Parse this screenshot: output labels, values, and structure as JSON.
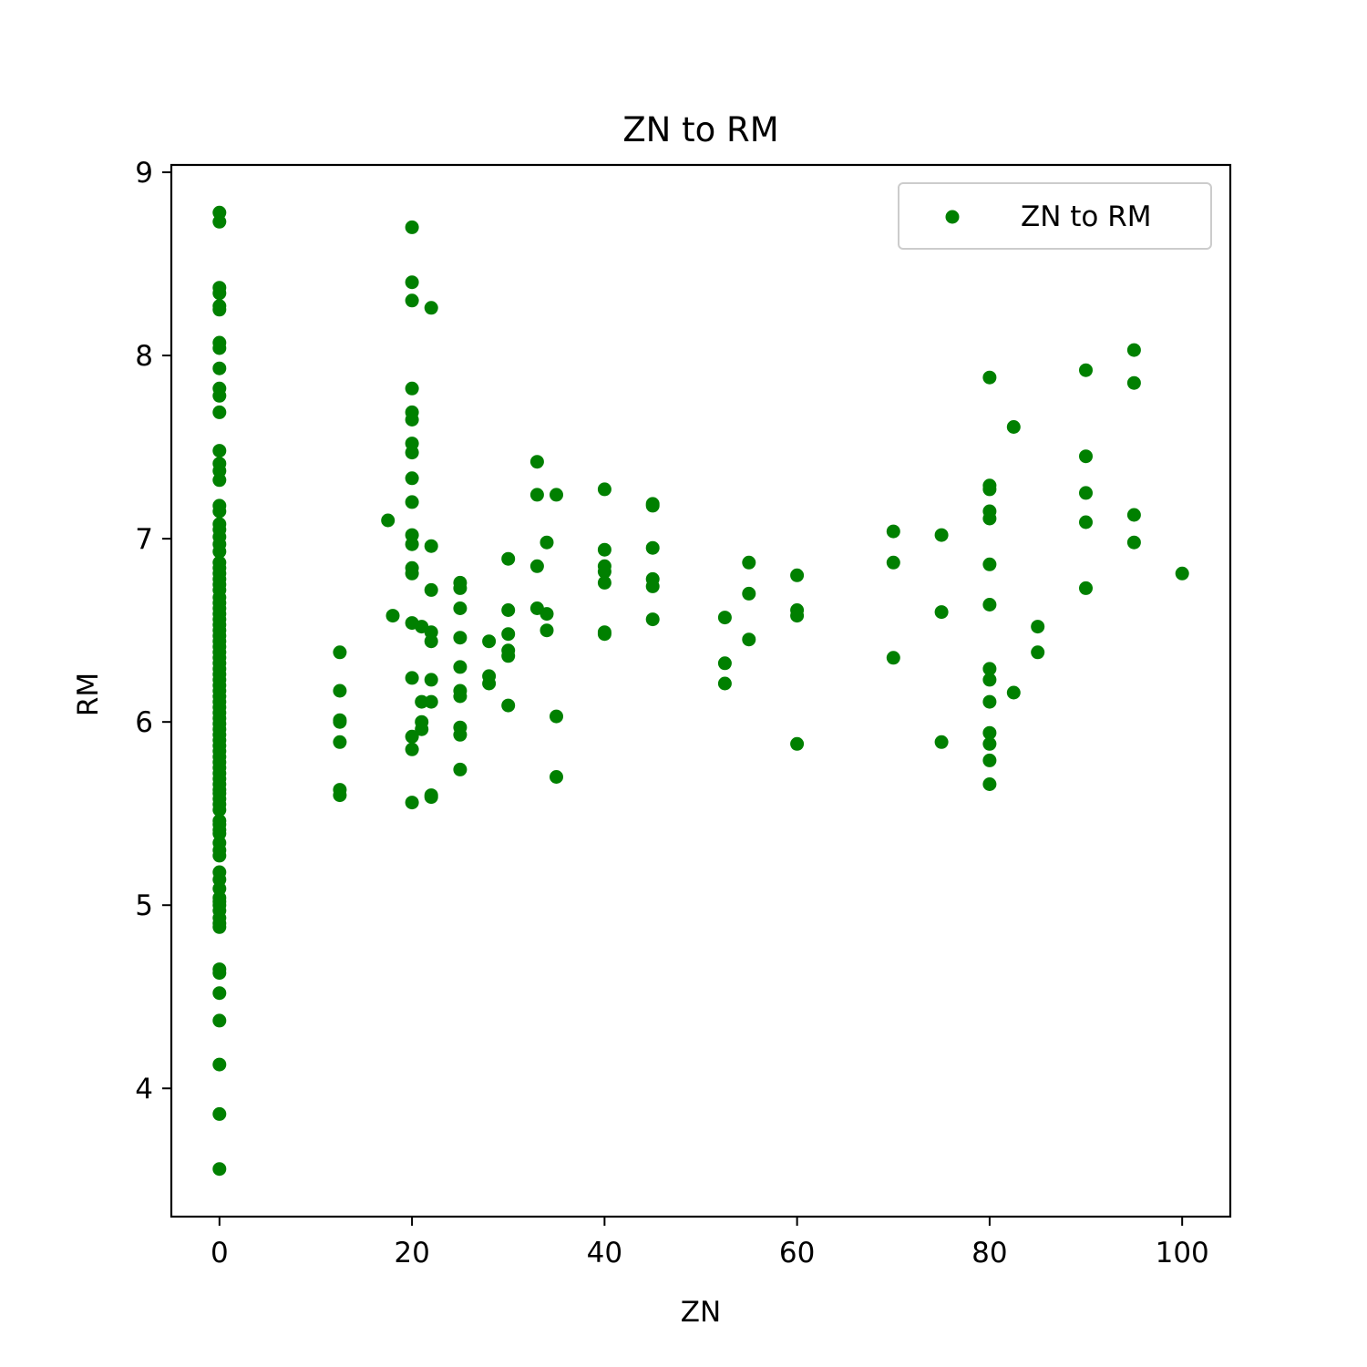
{
  "colors": {
    "marker": "#008000",
    "axes": "#000000",
    "background": "#ffffff",
    "legend_border": "#cccccc"
  },
  "chart_data": {
    "type": "scatter",
    "title": "ZN to RM",
    "xlabel": "ZN",
    "ylabel": "RM",
    "xlim": [
      -5,
      105
    ],
    "ylim": [
      3.3,
      9.04
    ],
    "xticks": [
      0,
      20,
      40,
      60,
      80,
      100
    ],
    "yticks": [
      4,
      5,
      6,
      7,
      8,
      9
    ],
    "grid": false,
    "legend_position": "top-right",
    "series": [
      {
        "name": "ZN to RM",
        "color": "#008000",
        "points": [
          [
            0,
            3.56
          ],
          [
            0,
            3.86
          ],
          [
            0,
            4.13
          ],
          [
            0,
            4.37
          ],
          [
            0,
            4.52
          ],
          [
            0,
            4.63
          ],
          [
            0,
            4.65
          ],
          [
            0,
            4.88
          ],
          [
            0,
            4.9
          ],
          [
            0,
            4.93
          ],
          [
            0,
            4.97
          ],
          [
            0,
            5.0
          ],
          [
            0,
            5.02
          ],
          [
            0,
            5.04
          ],
          [
            0,
            5.09
          ],
          [
            0,
            5.14
          ],
          [
            0,
            5.18
          ],
          [
            0,
            5.27
          ],
          [
            0,
            5.3
          ],
          [
            0,
            5.34
          ],
          [
            0,
            5.39
          ],
          [
            0,
            5.41
          ],
          [
            0,
            5.44
          ],
          [
            0,
            5.46
          ],
          [
            0,
            5.52
          ],
          [
            0,
            5.55
          ],
          [
            0,
            5.58
          ],
          [
            0,
            5.61
          ],
          [
            0,
            5.63
          ],
          [
            0,
            5.66
          ],
          [
            0,
            5.69
          ],
          [
            0,
            5.72
          ],
          [
            0,
            5.75
          ],
          [
            0,
            5.78
          ],
          [
            0,
            5.81
          ],
          [
            0,
            5.84
          ],
          [
            0,
            5.87
          ],
          [
            0,
            5.9
          ],
          [
            0,
            5.93
          ],
          [
            0,
            5.96
          ],
          [
            0,
            5.99
          ],
          [
            0,
            6.02
          ],
          [
            0,
            6.05
          ],
          [
            0,
            6.08
          ],
          [
            0,
            6.11
          ],
          [
            0,
            6.14
          ],
          [
            0,
            6.17
          ],
          [
            0,
            6.2
          ],
          [
            0,
            6.23
          ],
          [
            0,
            6.26
          ],
          [
            0,
            6.29
          ],
          [
            0,
            6.32
          ],
          [
            0,
            6.35
          ],
          [
            0,
            6.38
          ],
          [
            0,
            6.41
          ],
          [
            0,
            6.44
          ],
          [
            0,
            6.47
          ],
          [
            0,
            6.5
          ],
          [
            0,
            6.53
          ],
          [
            0,
            6.56
          ],
          [
            0,
            6.59
          ],
          [
            0,
            6.62
          ],
          [
            0,
            6.65
          ],
          [
            0,
            6.68
          ],
          [
            0,
            6.72
          ],
          [
            0,
            6.75
          ],
          [
            0,
            6.78
          ],
          [
            0,
            6.81
          ],
          [
            0,
            6.84
          ],
          [
            0,
            6.87
          ],
          [
            0,
            6.93
          ],
          [
            0,
            6.97
          ],
          [
            0,
            7.01
          ],
          [
            0,
            7.05
          ],
          [
            0,
            7.08
          ],
          [
            0,
            7.15
          ],
          [
            0,
            7.18
          ],
          [
            0,
            7.32
          ],
          [
            0,
            7.37
          ],
          [
            0,
            7.41
          ],
          [
            0,
            7.48
          ],
          [
            0,
            7.69
          ],
          [
            0,
            7.78
          ],
          [
            0,
            7.82
          ],
          [
            0,
            7.93
          ],
          [
            0,
            8.04
          ],
          [
            0,
            8.07
          ],
          [
            0,
            8.25
          ],
          [
            0,
            8.27
          ],
          [
            0,
            8.34
          ],
          [
            0,
            8.37
          ],
          [
            0,
            8.73
          ],
          [
            0,
            8.78
          ],
          [
            12.5,
            5.6
          ],
          [
            12.5,
            5.63
          ],
          [
            12.5,
            5.89
          ],
          [
            12.5,
            6.0
          ],
          [
            12.5,
            6.01
          ],
          [
            12.5,
            6.17
          ],
          [
            12.5,
            6.38
          ],
          [
            17.5,
            7.1
          ],
          [
            18,
            6.58
          ],
          [
            20,
            5.56
          ],
          [
            20,
            5.85
          ],
          [
            20,
            5.92
          ],
          [
            20,
            6.24
          ],
          [
            20,
            6.54
          ],
          [
            20,
            6.81
          ],
          [
            20,
            6.84
          ],
          [
            20,
            6.97
          ],
          [
            20,
            7.02
          ],
          [
            20,
            7.2
          ],
          [
            20,
            7.33
          ],
          [
            20,
            7.47
          ],
          [
            20,
            7.52
          ],
          [
            20,
            7.65
          ],
          [
            20,
            7.69
          ],
          [
            20,
            7.82
          ],
          [
            20,
            8.3
          ],
          [
            20,
            8.4
          ],
          [
            20,
            8.7
          ],
          [
            21,
            5.96
          ],
          [
            21,
            6.0
          ],
          [
            21,
            6.11
          ],
          [
            21,
            6.52
          ],
          [
            22,
            5.59
          ],
          [
            22,
            5.6
          ],
          [
            22,
            6.11
          ],
          [
            22,
            6.23
          ],
          [
            22,
            6.44
          ],
          [
            22,
            6.49
          ],
          [
            22,
            6.72
          ],
          [
            22,
            6.96
          ],
          [
            22,
            8.26
          ],
          [
            25,
            5.74
          ],
          [
            25,
            5.93
          ],
          [
            25,
            5.97
          ],
          [
            25,
            6.14
          ],
          [
            25,
            6.17
          ],
          [
            25,
            6.3
          ],
          [
            25,
            6.46
          ],
          [
            25,
            6.62
          ],
          [
            25,
            6.73
          ],
          [
            25,
            6.76
          ],
          [
            28,
            6.21
          ],
          [
            28,
            6.25
          ],
          [
            28,
            6.44
          ],
          [
            30,
            6.09
          ],
          [
            30,
            6.36
          ],
          [
            30,
            6.39
          ],
          [
            30,
            6.48
          ],
          [
            30,
            6.61
          ],
          [
            30,
            6.89
          ],
          [
            33,
            6.62
          ],
          [
            33,
            6.85
          ],
          [
            33,
            7.24
          ],
          [
            33,
            7.42
          ],
          [
            34,
            6.5
          ],
          [
            34,
            6.59
          ],
          [
            34,
            6.98
          ],
          [
            35,
            5.7
          ],
          [
            35,
            6.03
          ],
          [
            35,
            7.24
          ],
          [
            40,
            6.48
          ],
          [
            40,
            6.49
          ],
          [
            40,
            6.76
          ],
          [
            40,
            6.82
          ],
          [
            40,
            6.85
          ],
          [
            40,
            6.94
          ],
          [
            40,
            7.27
          ],
          [
            45,
            6.56
          ],
          [
            45,
            6.74
          ],
          [
            45,
            6.78
          ],
          [
            45,
            6.95
          ],
          [
            45,
            7.18
          ],
          [
            45,
            7.19
          ],
          [
            52.5,
            6.21
          ],
          [
            52.5,
            6.32
          ],
          [
            52.5,
            6.57
          ],
          [
            55,
            6.45
          ],
          [
            55,
            6.7
          ],
          [
            55,
            6.87
          ],
          [
            60,
            5.88
          ],
          [
            60,
            6.58
          ],
          [
            60,
            6.61
          ],
          [
            60,
            6.8
          ],
          [
            70,
            6.35
          ],
          [
            70,
            6.87
          ],
          [
            70,
            7.04
          ],
          [
            75,
            5.89
          ],
          [
            75,
            6.6
          ],
          [
            75,
            7.02
          ],
          [
            80,
            5.66
          ],
          [
            80,
            5.79
          ],
          [
            80,
            5.88
          ],
          [
            80,
            5.94
          ],
          [
            80,
            6.11
          ],
          [
            80,
            6.23
          ],
          [
            80,
            6.29
          ],
          [
            80,
            6.64
          ],
          [
            80,
            6.86
          ],
          [
            80,
            7.11
          ],
          [
            80,
            7.15
          ],
          [
            80,
            7.27
          ],
          [
            80,
            7.29
          ],
          [
            80,
            7.88
          ],
          [
            82.5,
            6.16
          ],
          [
            82.5,
            7.61
          ],
          [
            85,
            6.38
          ],
          [
            85,
            6.52
          ],
          [
            90,
            6.73
          ],
          [
            90,
            7.09
          ],
          [
            90,
            7.25
          ],
          [
            90,
            7.45
          ],
          [
            90,
            7.92
          ],
          [
            95,
            6.98
          ],
          [
            95,
            7.13
          ],
          [
            95,
            7.85
          ],
          [
            95,
            8.03
          ],
          [
            100,
            6.81
          ]
        ]
      }
    ]
  }
}
